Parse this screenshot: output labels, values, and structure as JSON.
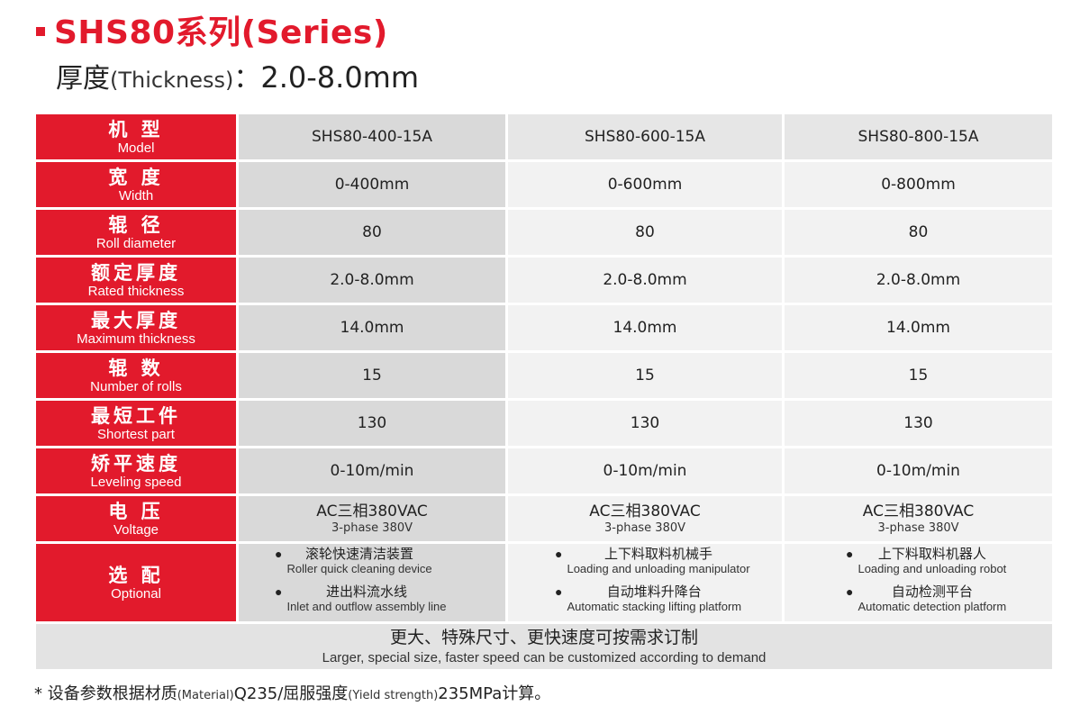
{
  "title": "SHS80系列(Series)",
  "subtitle": {
    "cn": "厚度",
    "en": "(Thickness)",
    "colon": "：",
    "value": "2.0-8.0mm"
  },
  "colors": {
    "accent": "#e21a2c",
    "col1_bg": "#d9d9d9",
    "col_bg": "#f2f2f2"
  },
  "rows": [
    {
      "cn": "机 型",
      "en": "Model",
      "values": [
        "SHS80-400-15A",
        "SHS80-600-15A",
        "SHS80-800-15A"
      ]
    },
    {
      "cn": "宽 度",
      "en": "Width",
      "values": [
        "0-400mm",
        "0-600mm",
        "0-800mm"
      ]
    },
    {
      "cn": "辊 径",
      "en": "Roll diameter",
      "values": [
        "80",
        "80",
        "80"
      ]
    },
    {
      "cn": "额定厚度",
      "en": "Rated thickness",
      "values": [
        "2.0-8.0mm",
        "2.0-8.0mm",
        "2.0-8.0mm"
      ]
    },
    {
      "cn": "最大厚度",
      "en": "Maximum thickness",
      "values": [
        "14.0mm",
        "14.0mm",
        "14.0mm"
      ]
    },
    {
      "cn": "辊 数",
      "en": "Number of rolls",
      "values": [
        "15",
        "15",
        "15"
      ]
    },
    {
      "cn": "最短工件",
      "en": "Shortest part",
      "values": [
        "130",
        "130",
        "130"
      ]
    },
    {
      "cn": "矫平速度",
      "en": "Leveling speed",
      "values": [
        "0-10m/min",
        "0-10m/min",
        "0-10m/min"
      ]
    }
  ],
  "voltage": {
    "cn": "电 压",
    "en": "Voltage",
    "values": [
      {
        "main": "AC三相380VAC",
        "sub": "3-phase 380V"
      },
      {
        "main": "AC三相380VAC",
        "sub": "3-phase 380V"
      },
      {
        "main": "AC三相380VAC",
        "sub": "3-phase 380V"
      }
    ]
  },
  "optional": {
    "cn": "选 配",
    "en": "Optional",
    "bullet": "●",
    "columns": [
      [
        {
          "cn": "滚轮快速清洁装置",
          "en": "Roller quick cleaning device"
        },
        {
          "cn": "进出料流水线",
          "en": "Inlet and outflow assembly line"
        }
      ],
      [
        {
          "cn": "上下料取料机械手",
          "en": "Loading and unloading manipulator"
        },
        {
          "cn": "自动堆料升降台",
          "en": "Automatic stacking lifting platform"
        }
      ],
      [
        {
          "cn": "上下料取料机器人",
          "en": "Loading and unloading robot"
        },
        {
          "cn": "自动检测平台",
          "en": "Automatic detection platform"
        }
      ]
    ]
  },
  "note": {
    "cn": "更大、特殊尺寸、更快速度可按需求订制",
    "en": "Larger, special size, faster speed can be customized according to demand"
  },
  "footnote": {
    "p1": "* 设备参数根据材质",
    "p2": "(Material)",
    "p3": "Q235/屈服强度",
    "p4": "(Yield strength)",
    "p5": "235MPa计算。"
  }
}
